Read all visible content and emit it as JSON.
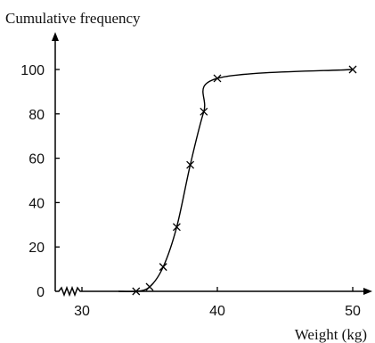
{
  "chart_data": {
    "type": "line",
    "title": "",
    "xlabel": "Weight (kg)",
    "ylabel": "Cumulative frequency",
    "xlim": [
      28,
      51
    ],
    "ylim": [
      0,
      108
    ],
    "x_ticks": [
      30,
      40,
      50
    ],
    "y_ticks": [
      0,
      20,
      40,
      60,
      80,
      100
    ],
    "x_tick_labels": [
      "30",
      "40",
      "50"
    ],
    "y_tick_labels": [
      "0",
      "20",
      "40",
      "60",
      "80",
      "100"
    ],
    "grid": false,
    "x_axis_break": true,
    "curve_start": {
      "x": 32.7,
      "y": 0
    },
    "series": [
      {
        "marker": "x",
        "points": [
          {
            "x": 34,
            "y": 0
          },
          {
            "x": 35,
            "y": 2
          },
          {
            "x": 36,
            "y": 11
          },
          {
            "x": 37,
            "y": 29
          },
          {
            "x": 38,
            "y": 57
          },
          {
            "x": 39,
            "y": 81
          },
          {
            "x": 40,
            "y": 96
          },
          {
            "x": 50,
            "y": 100
          }
        ]
      }
    ]
  }
}
